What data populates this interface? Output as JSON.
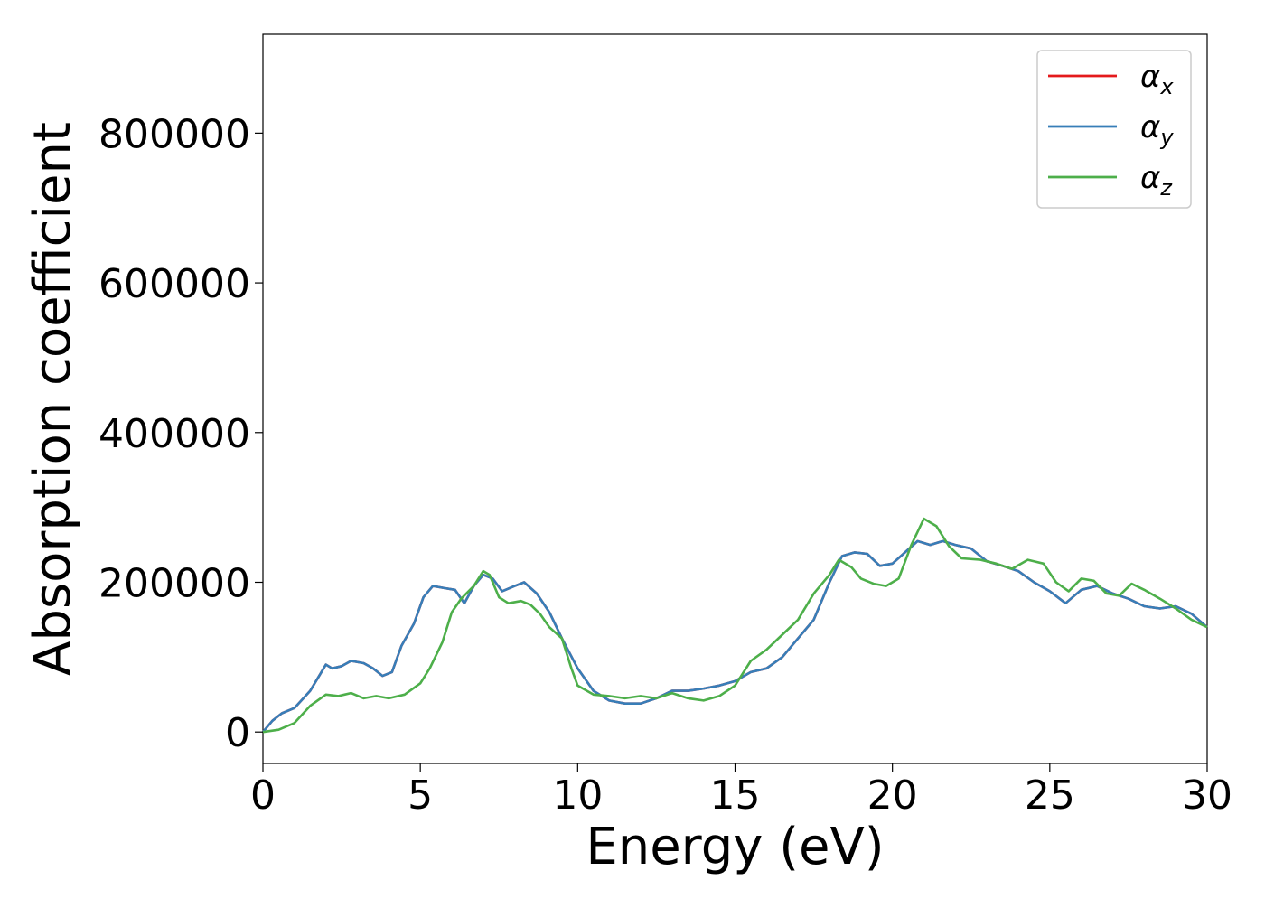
{
  "chart_data": {
    "type": "line",
    "title": "",
    "xlabel": "Energy (eV)",
    "ylabel": "Absorption coefficient",
    "xlim": [
      0,
      30
    ],
    "ylim": [
      -42000,
      932000
    ],
    "xticks": [
      0,
      5,
      10,
      15,
      20,
      25,
      30
    ],
    "xtick_labels": [
      "0",
      "5",
      "10",
      "15",
      "20",
      "25",
      "30"
    ],
    "yticks": [
      0,
      200000,
      400000,
      600000,
      800000
    ],
    "ytick_labels": [
      "0",
      "200000",
      "400000",
      "600000",
      "800000"
    ],
    "grid": false,
    "legend_position": "top-right",
    "series": [
      {
        "name": "α",
        "subscript": "x",
        "color": "#e41a1c",
        "x": [
          0,
          0.3,
          0.6,
          1.0,
          1.5,
          2.0,
          2.2,
          2.5,
          2.8,
          3.2,
          3.5,
          3.8,
          4.1,
          4.4,
          4.8,
          5.1,
          5.4,
          5.8,
          6.1,
          6.4,
          6.7,
          7.0,
          7.3,
          7.6,
          8.0,
          8.3,
          8.7,
          9.1,
          9.5,
          10.0,
          10.5,
          11.0,
          11.5,
          12.0,
          12.5,
          13.0,
          13.5,
          14.0,
          14.5,
          15.0,
          15.5,
          16.0,
          16.5,
          17.0,
          17.5,
          18.0,
          18.4,
          18.8,
          19.2,
          19.6,
          20.0,
          20.4,
          20.8,
          21.2,
          21.6,
          22.0,
          22.5,
          23.0,
          23.5,
          24.0,
          24.5,
          25.0,
          25.5,
          26.0,
          26.5,
          27.0,
          27.5,
          28.0,
          28.5,
          29.0,
          29.5,
          30.0
        ],
        "y": [
          0,
          15000,
          25000,
          32000,
          55000,
          90000,
          85000,
          88000,
          95000,
          92000,
          85000,
          75000,
          80000,
          115000,
          145000,
          180000,
          195000,
          192000,
          190000,
          172000,
          195000,
          210000,
          205000,
          188000,
          195000,
          200000,
          185000,
          160000,
          125000,
          85000,
          55000,
          42000,
          38000,
          38000,
          45000,
          55000,
          55000,
          58000,
          62000,
          68000,
          80000,
          85000,
          100000,
          125000,
          150000,
          200000,
          235000,
          240000,
          238000,
          222000,
          225000,
          240000,
          255000,
          250000,
          255000,
          250000,
          245000,
          228000,
          222000,
          215000,
          200000,
          188000,
          172000,
          190000,
          195000,
          185000,
          178000,
          168000,
          165000,
          168000,
          158000,
          140000
        ]
      },
      {
        "name": "α",
        "subscript": "y",
        "color": "#377eb8",
        "x": [
          0,
          0.3,
          0.6,
          1.0,
          1.5,
          2.0,
          2.2,
          2.5,
          2.8,
          3.2,
          3.5,
          3.8,
          4.1,
          4.4,
          4.8,
          5.1,
          5.4,
          5.8,
          6.1,
          6.4,
          6.7,
          7.0,
          7.3,
          7.6,
          8.0,
          8.3,
          8.7,
          9.1,
          9.5,
          10.0,
          10.5,
          11.0,
          11.5,
          12.0,
          12.5,
          13.0,
          13.5,
          14.0,
          14.5,
          15.0,
          15.5,
          16.0,
          16.5,
          17.0,
          17.5,
          18.0,
          18.4,
          18.8,
          19.2,
          19.6,
          20.0,
          20.4,
          20.8,
          21.2,
          21.6,
          22.0,
          22.5,
          23.0,
          23.5,
          24.0,
          24.5,
          25.0,
          25.5,
          26.0,
          26.5,
          27.0,
          27.5,
          28.0,
          28.5,
          29.0,
          29.5,
          30.0
        ],
        "y": [
          0,
          15000,
          25000,
          32000,
          55000,
          90000,
          85000,
          88000,
          95000,
          92000,
          85000,
          75000,
          80000,
          115000,
          145000,
          180000,
          195000,
          192000,
          190000,
          172000,
          195000,
          210000,
          205000,
          188000,
          195000,
          200000,
          185000,
          160000,
          125000,
          85000,
          55000,
          42000,
          38000,
          38000,
          45000,
          55000,
          55000,
          58000,
          62000,
          68000,
          80000,
          85000,
          100000,
          125000,
          150000,
          200000,
          235000,
          240000,
          238000,
          222000,
          225000,
          240000,
          255000,
          250000,
          255000,
          250000,
          245000,
          228000,
          222000,
          215000,
          200000,
          188000,
          172000,
          190000,
          195000,
          185000,
          178000,
          168000,
          165000,
          168000,
          158000,
          140000
        ]
      },
      {
        "name": "α",
        "subscript": "z",
        "color": "#4daf4a",
        "x": [
          0,
          0.5,
          1.0,
          1.5,
          2.0,
          2.4,
          2.8,
          3.2,
          3.6,
          4.0,
          4.5,
          5.0,
          5.3,
          5.7,
          6.0,
          6.3,
          6.7,
          7.0,
          7.2,
          7.5,
          7.8,
          8.2,
          8.5,
          8.8,
          9.1,
          9.5,
          9.8,
          10.0,
          10.5,
          11.0,
          11.5,
          12.0,
          12.5,
          13.0,
          13.5,
          14.0,
          14.5,
          15.0,
          15.5,
          16.0,
          16.5,
          17.0,
          17.5,
          18.0,
          18.3,
          18.7,
          19.0,
          19.4,
          19.8,
          20.2,
          20.6,
          21.0,
          21.4,
          21.8,
          22.2,
          22.8,
          23.3,
          23.8,
          24.3,
          24.8,
          25.2,
          25.6,
          26.0,
          26.4,
          26.8,
          27.2,
          27.6,
          28.0,
          28.5,
          29.0,
          29.5,
          30.0
        ],
        "y": [
          0,
          3000,
          12000,
          35000,
          50000,
          48000,
          52000,
          45000,
          48000,
          45000,
          50000,
          65000,
          85000,
          120000,
          160000,
          178000,
          195000,
          215000,
          210000,
          180000,
          172000,
          175000,
          170000,
          158000,
          140000,
          125000,
          85000,
          62000,
          50000,
          48000,
          45000,
          48000,
          45000,
          52000,
          45000,
          42000,
          48000,
          62000,
          95000,
          110000,
          130000,
          150000,
          185000,
          210000,
          230000,
          220000,
          205000,
          198000,
          195000,
          205000,
          250000,
          285000,
          275000,
          248000,
          232000,
          230000,
          225000,
          218000,
          230000,
          225000,
          200000,
          188000,
          205000,
          202000,
          185000,
          182000,
          198000,
          190000,
          178000,
          165000,
          150000,
          140000
        ]
      }
    ]
  }
}
